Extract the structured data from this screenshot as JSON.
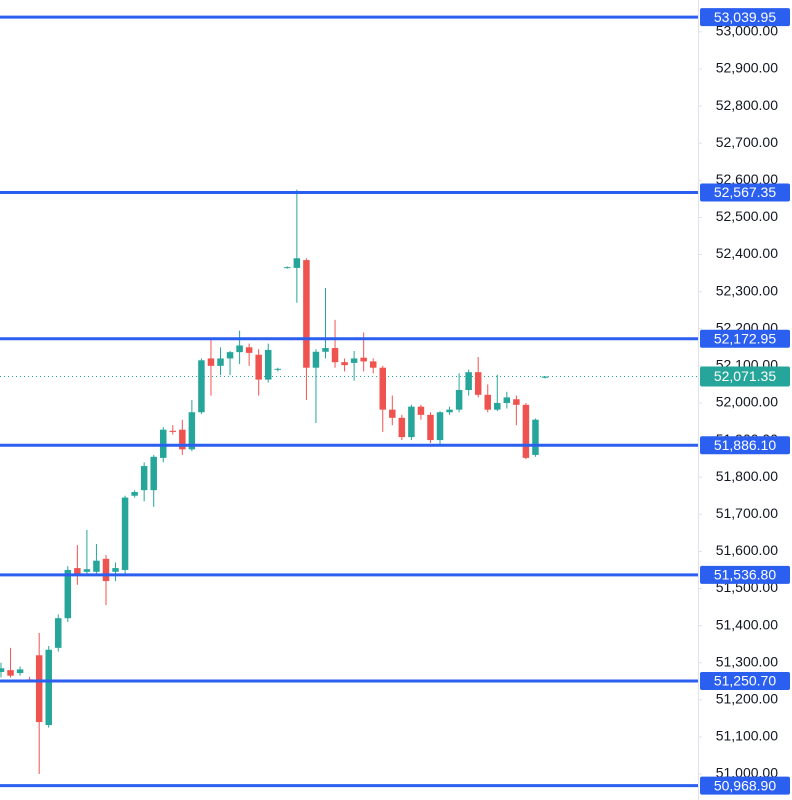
{
  "chart_data": {
    "type": "candlestick",
    "open": [
      51275,
      51280,
      51272,
      51255,
      51320,
      51132,
      51340,
      51420,
      51555,
      51545,
      51545,
      51580,
      51545,
      51550,
      51750,
      51765,
      51765,
      51852,
      51925,
      51928,
      51875,
      51975,
      52120,
      52100,
      52120,
      52137,
      52150,
      52130,
      52063,
      52090,
      52365,
      52364,
      52385,
      52095,
      52138,
      52148,
      52110,
      52108,
      52122,
      52112,
      52095,
      51982,
      51960,
      51908,
      51990,
      51968,
      51900,
      51975,
      51982,
      52035,
      52083,
      52022,
      51982,
      52000,
      52010,
      51995,
      51860,
      52068
    ],
    "high": [
      51300,
      51340,
      51290,
      51262,
      51380,
      51345,
      51430,
      51560,
      51617,
      51658,
      51620,
      51590,
      51570,
      51750,
      51765,
      51840,
      51860,
      51935,
      51940,
      51955,
      52008,
      52120,
      52170,
      52150,
      52140,
      52195,
      52160,
      52145,
      52160,
      52095,
      52368,
      52575,
      52390,
      52145,
      52310,
      52224,
      52120,
      52140,
      52190,
      52120,
      52100,
      52020,
      51968,
      51995,
      51995,
      51975,
      51978,
      51990,
      52080,
      52090,
      52124,
      52050,
      52076,
      52030,
      52020,
      52000,
      51958,
      52072
    ],
    "low": [
      51260,
      51260,
      51265,
      51248,
      51000,
      51125,
      51330,
      51410,
      51510,
      51535,
      51535,
      51455,
      51520,
      51540,
      51745,
      51735,
      51720,
      51840,
      51915,
      51860,
      51870,
      51970,
      52020,
      52075,
      52075,
      52105,
      52100,
      52020,
      52055,
      52085,
      52362,
      52270,
      52008,
      51946,
      52120,
      52095,
      52085,
      52060,
      52085,
      52080,
      51922,
      51940,
      51900,
      51900,
      51955,
      51892,
      51885,
      51968,
      51975,
      52020,
      52015,
      51975,
      51978,
      51985,
      51940,
      51848,
      51855,
      52066
    ],
    "close": [
      51285,
      51265,
      51282,
      51252,
      51140,
      51335,
      51420,
      51550,
      51540,
      51552,
      51575,
      51520,
      51555,
      51745,
      51760,
      51830,
      51855,
      51928,
      51922,
      51875,
      51975,
      52115,
      52100,
      52120,
      52137,
      52155,
      52135,
      52063,
      52143,
      52092,
      52366,
      52390,
      52095,
      52138,
      52148,
      52110,
      52102,
      52120,
      52112,
      52095,
      51982,
      51960,
      51908,
      51990,
      51968,
      51900,
      51975,
      51982,
      52035,
      52083,
      52022,
      51982,
      52000,
      52015,
      51995,
      51852,
      51955,
      52071.35
    ],
    "up_color": "#26a69a",
    "down_color": "#ef5350",
    "ylim": [
      50930,
      53086
    ],
    "yticks": [
      {
        "value": 51000,
        "label": "51,000.00"
      },
      {
        "value": 51100,
        "label": "51,100.00"
      },
      {
        "value": 51200,
        "label": "51,200.00"
      },
      {
        "value": 51300,
        "label": "51,300.00"
      },
      {
        "value": 51400,
        "label": "51,400.00"
      },
      {
        "value": 51500,
        "label": "51,500.00"
      },
      {
        "value": 51600,
        "label": "51,600.00"
      },
      {
        "value": 51700,
        "label": "51,700.00"
      },
      {
        "value": 51800,
        "label": "51,800.00"
      },
      {
        "value": 51900,
        "label": "51,900.00"
      },
      {
        "value": 52000,
        "label": "52,000.00"
      },
      {
        "value": 52100,
        "label": "52,100.00"
      },
      {
        "value": 52200,
        "label": "52,200.00"
      },
      {
        "value": 52300,
        "label": "52,300.00"
      },
      {
        "value": 52400,
        "label": "52,400.00"
      },
      {
        "value": 52500,
        "label": "52,500.00"
      },
      {
        "value": 52600,
        "label": "52,600.00"
      },
      {
        "value": 52700,
        "label": "52,700.00"
      },
      {
        "value": 52800,
        "label": "52,800.00"
      },
      {
        "value": 52900,
        "label": "52,900.00"
      },
      {
        "value": 53000,
        "label": "53,000.00"
      }
    ],
    "levels": [
      {
        "value": 53039.95,
        "label": "53,039.95"
      },
      {
        "value": 52567.35,
        "label": "52,567.35"
      },
      {
        "value": 52172.95,
        "label": "52,172.95"
      },
      {
        "value": 51886.1,
        "label": "51,886.10"
      },
      {
        "value": 51536.8,
        "label": "51,536.80"
      },
      {
        "value": 51250.7,
        "label": "51,250.70"
      },
      {
        "value": 50968.9,
        "label": "50,968.90"
      }
    ],
    "level_color": "#2a5ff0",
    "last_price": {
      "value": 52071.35,
      "label": "52,071.35"
    }
  }
}
